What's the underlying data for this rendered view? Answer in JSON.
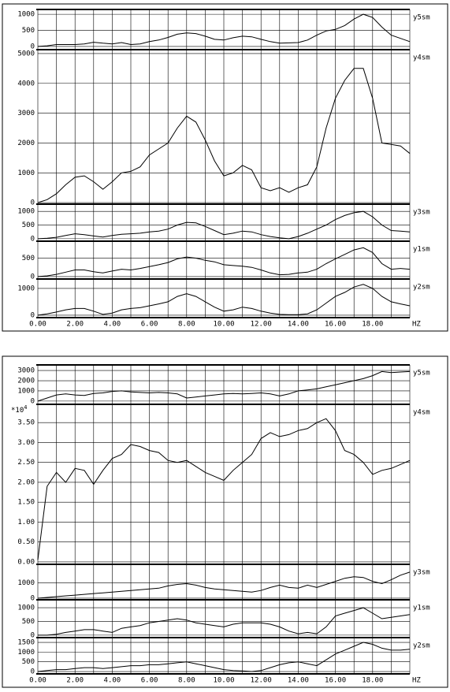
{
  "chart_data": [
    {
      "type": "line",
      "xlabel": "HZ",
      "x": [
        0,
        0.5,
        1,
        1.5,
        2,
        2.5,
        3,
        3.5,
        4,
        4.5,
        5,
        5.5,
        6,
        6.5,
        7,
        7.5,
        8,
        8.5,
        9,
        9.5,
        10,
        10.5,
        11,
        11.5,
        12,
        12.5,
        13,
        13.5,
        14,
        14.5,
        15,
        15.5,
        16,
        16.5,
        17,
        17.5,
        18,
        18.5,
        19,
        19.5,
        20
      ],
      "xlim": [
        0,
        20
      ],
      "xticks": [
        {
          "value": 0,
          "label": "0.00"
        },
        {
          "value": 2,
          "label": "2.00"
        },
        {
          "value": 4,
          "label": "4.00"
        },
        {
          "value": 6,
          "label": "6.00"
        },
        {
          "value": 8,
          "label": "8.00"
        },
        {
          "value": 10,
          "label": "10.00"
        },
        {
          "value": 12,
          "label": "12.00"
        },
        {
          "value": 14,
          "label": "14.00"
        },
        {
          "value": 16,
          "label": "16.00"
        },
        {
          "value": 18,
          "label": "18.00"
        }
      ],
      "xminorticks": [
        1,
        3,
        5,
        7,
        9,
        11,
        13,
        15,
        17,
        19
      ],
      "grid": true,
      "series": [
        {
          "name": "y5sm",
          "color": "#000000",
          "ylim": [
            -100,
            1150
          ],
          "yticks": [
            0,
            500,
            1000
          ],
          "values": [
            0,
            20,
            60,
            60,
            60,
            80,
            130,
            100,
            80,
            120,
            60,
            80,
            150,
            200,
            280,
            380,
            420,
            400,
            320,
            220,
            200,
            270,
            320,
            300,
            220,
            150,
            100,
            110,
            120,
            200,
            350,
            480,
            530,
            650,
            850,
            1000,
            900,
            600,
            350,
            250,
            150
          ]
        },
        {
          "name": "y4sm",
          "color": "#000000",
          "ylim": [
            -50,
            5130
          ],
          "yticks": [
            0,
            1000,
            2000,
            3000,
            4000,
            5000
          ],
          "values": [
            0,
            100,
            300,
            600,
            850,
            900,
            700,
            450,
            700,
            1000,
            1050,
            1200,
            1600,
            1800,
            2000,
            2500,
            2900,
            2700,
            2100,
            1400,
            900,
            1000,
            1250,
            1100,
            500,
            400,
            500,
            350,
            500,
            600,
            1200,
            2500,
            3500,
            4100,
            4500,
            4500,
            3500,
            2000,
            1950,
            1900,
            1650
          ]
        },
        {
          "name": "y3sm",
          "color": "#000000",
          "ylim": [
            -90,
            1265
          ],
          "yticks": [
            0,
            500,
            1000
          ],
          "values": [
            0,
            20,
            50,
            120,
            180,
            150,
            100,
            60,
            120,
            160,
            180,
            200,
            250,
            280,
            350,
            500,
            600,
            580,
            450,
            300,
            150,
            200,
            280,
            250,
            150,
            80,
            30,
            0,
            80,
            200,
            350,
            500,
            700,
            850,
            950,
            1000,
            800,
            500,
            300,
            280,
            250
          ]
        },
        {
          "name": "y1sm",
          "color": "#000000",
          "ylim": [
            -65,
            957
          ],
          "yticks": [
            0,
            500
          ],
          "values": [
            0,
            20,
            60,
            120,
            180,
            180,
            130,
            100,
            150,
            200,
            180,
            220,
            270,
            320,
            380,
            480,
            530,
            500,
            440,
            400,
            320,
            300,
            280,
            250,
            180,
            100,
            50,
            60,
            100,
            120,
            200,
            350,
            480,
            600,
            720,
            780,
            650,
            350,
            200,
            220,
            200
          ]
        },
        {
          "name": "y2sm",
          "color": "#000000",
          "ylim": [
            -90,
            1350
          ],
          "yticks": [
            0,
            1000
          ],
          "values": [
            0,
            50,
            120,
            200,
            250,
            250,
            150,
            30,
            80,
            200,
            250,
            280,
            350,
            420,
            500,
            700,
            800,
            700,
            500,
            300,
            150,
            200,
            300,
            250,
            150,
            80,
            30,
            20,
            20,
            50,
            200,
            450,
            700,
            850,
            1050,
            1150,
            1000,
            700,
            500,
            420,
            350
          ]
        }
      ]
    },
    {
      "type": "line",
      "xlabel": "HZ",
      "x": [
        0,
        0.5,
        1,
        1.5,
        2,
        2.5,
        3,
        3.5,
        4,
        4.5,
        5,
        5.5,
        6,
        6.5,
        7,
        7.5,
        8,
        8.5,
        9,
        9.5,
        10,
        10.5,
        11,
        11.5,
        12,
        12.5,
        13,
        13.5,
        14,
        14.5,
        15,
        15.5,
        16,
        16.5,
        17,
        17.5,
        18,
        18.5,
        19,
        19.5,
        20
      ],
      "xlim": [
        0,
        20
      ],
      "xticks": [
        {
          "value": 0,
          "label": "0.00"
        },
        {
          "value": 2,
          "label": "2.00"
        },
        {
          "value": 4,
          "label": "4.00"
        },
        {
          "value": 6,
          "label": "6.00"
        },
        {
          "value": 8,
          "label": "8.00"
        },
        {
          "value": 10,
          "label": "10.00"
        },
        {
          "value": 12,
          "label": "12.00"
        },
        {
          "value": 14,
          "label": "14.00"
        },
        {
          "value": 16,
          "label": "16.00"
        },
        {
          "value": 18,
          "label": "18.00"
        }
      ],
      "xminorticks": [
        1,
        3,
        5,
        7,
        9,
        11,
        13,
        15,
        17,
        19
      ],
      "grid": true,
      "series": [
        {
          "name": "y5sm",
          "color": "#000000",
          "ylim": [
            -320,
            3550
          ],
          "yticks": [
            0,
            1000,
            2000,
            3000
          ],
          "values": [
            0,
            300,
            600,
            700,
            600,
            550,
            750,
            800,
            950,
            1000,
            900,
            850,
            800,
            850,
            800,
            700,
            300,
            400,
            500,
            600,
            700,
            750,
            700,
            750,
            800,
            700,
            500,
            700,
            1000,
            1100,
            1200,
            1400,
            1600,
            1800,
            2000,
            2200,
            2500,
            2900,
            2800,
            2850,
            2900
          ]
        },
        {
          "name": "y4sm",
          "color": "#000000",
          "ylim": [
            -0.06,
            3.96
          ],
          "scale_label": "*10",
          "scale_exponent": "4",
          "yticks": [
            {
              "value": 0,
              "label": "0.00"
            },
            {
              "value": 0.5,
              "label": "0.50"
            },
            {
              "value": 1,
              "label": "1.00"
            },
            {
              "value": 1.5,
              "label": "1.50"
            },
            {
              "value": 2,
              "label": "2.00"
            },
            {
              "value": 2.5,
              "label": "2.50"
            },
            {
              "value": 3,
              "label": "3.00"
            },
            {
              "value": 3.5,
              "label": "3.50"
            }
          ],
          "values": [
            0.05,
            1.9,
            2.25,
            2.0,
            2.35,
            2.3,
            1.95,
            2.3,
            2.6,
            2.7,
            2.95,
            2.9,
            2.8,
            2.75,
            2.55,
            2.5,
            2.55,
            2.4,
            2.25,
            2.15,
            2.05,
            2.3,
            2.5,
            2.7,
            3.1,
            3.25,
            3.15,
            3.2,
            3.3,
            3.35,
            3.5,
            3.6,
            3.3,
            2.8,
            2.7,
            2.5,
            2.2,
            2.3,
            2.35,
            2.45,
            2.55
          ]
        },
        {
          "name": "y3sm",
          "color": "#000000",
          "ylim": [
            -105,
            2210
          ],
          "yticks": [
            0,
            1000
          ],
          "values": [
            0,
            50,
            100,
            150,
            200,
            250,
            300,
            350,
            400,
            450,
            500,
            550,
            600,
            650,
            800,
            900,
            950,
            850,
            700,
            600,
            550,
            500,
            450,
            400,
            500,
            700,
            850,
            700,
            650,
            850,
            700,
            900,
            1100,
            1300,
            1400,
            1350,
            1100,
            950,
            1200,
            1500,
            1700
          ]
        },
        {
          "name": "y1sm",
          "color": "#000000",
          "ylim": [
            -90,
            1290
          ],
          "yticks": [
            0,
            500,
            1000
          ],
          "values": [
            0,
            0,
            30,
            100,
            150,
            200,
            200,
            150,
            100,
            250,
            300,
            350,
            450,
            500,
            550,
            600,
            550,
            450,
            400,
            350,
            300,
            400,
            450,
            450,
            450,
            400,
            300,
            150,
            50,
            100,
            50,
            300,
            700,
            800,
            900,
            1000,
            800,
            600,
            650,
            700,
            750
          ]
        },
        {
          "name": "y2sm",
          "color": "#000000",
          "ylim": [
            -120,
            1745
          ],
          "yticks": [
            0,
            500,
            1000,
            1500
          ],
          "values": [
            0,
            50,
            100,
            100,
            150,
            200,
            200,
            150,
            200,
            250,
            300,
            300,
            350,
            350,
            400,
            450,
            500,
            400,
            300,
            200,
            100,
            50,
            30,
            0,
            50,
            200,
            350,
            450,
            500,
            400,
            300,
            600,
            900,
            1100,
            1300,
            1500,
            1400,
            1200,
            1100,
            1100,
            1150
          ]
        }
      ]
    }
  ]
}
